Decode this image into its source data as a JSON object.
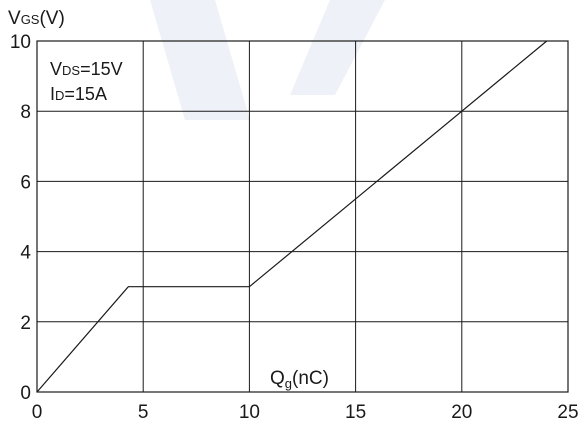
{
  "chart_data": {
    "type": "line",
    "ylabel": {
      "main": "V",
      "sub": "GS",
      "suffix": "(V)"
    },
    "xlabel": {
      "main": "Q",
      "sub": "g",
      "suffix": "(nC)"
    },
    "annotations": [
      {
        "main": "V",
        "sub": "DS",
        "suffix": "=15V"
      },
      {
        "main": "I",
        "sub": "D",
        "suffix": "=15A"
      }
    ],
    "xlim": [
      0,
      25
    ],
    "ylim": [
      0,
      10
    ],
    "x_ticks": [
      0,
      5,
      10,
      15,
      20,
      25
    ],
    "x_tick_labels": [
      "0",
      "5",
      "10",
      "15",
      "20",
      "25"
    ],
    "y_ticks": [
      0,
      2,
      4,
      6,
      8,
      10
    ],
    "y_tick_labels": [
      "0",
      "2",
      "4",
      "6",
      "8",
      "10"
    ],
    "grid": true,
    "series": [
      {
        "x": [
          0,
          4.3,
          10,
          24
        ],
        "y": [
          0,
          3,
          3,
          10
        ]
      }
    ]
  }
}
